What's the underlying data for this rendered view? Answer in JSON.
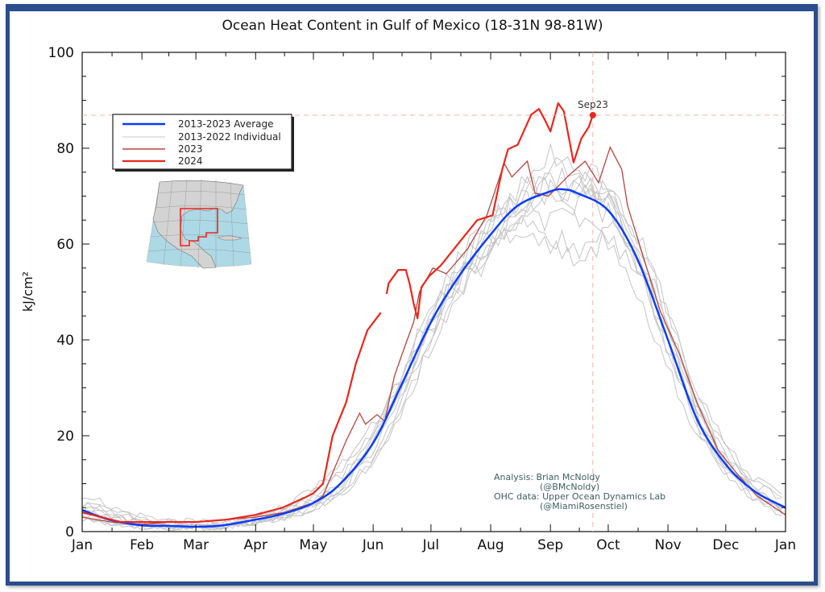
{
  "chart_data": {
    "type": "line",
    "title": "Ocean Heat Content in Gulf of Mexico (18-31N 98-81W)",
    "xlabel": "",
    "ylabel": "kJ/cm²",
    "ylim": [
      0,
      100
    ],
    "xlim_days": [
      0,
      365
    ],
    "yticks": [
      "0",
      "20",
      "40",
      "60",
      "80",
      "100"
    ],
    "ytick_values": [
      0,
      20,
      40,
      60,
      80,
      100
    ],
    "xticks": [
      "Jan",
      "Feb",
      "Mar",
      "Apr",
      "May",
      "Jun",
      "Jul",
      "Aug",
      "Sep",
      "Oct",
      "Nov",
      "Dec",
      "Jan"
    ],
    "xtick_days": [
      0,
      31,
      59,
      90,
      120,
      151,
      181,
      212,
      243,
      273,
      304,
      334,
      365
    ],
    "legend": {
      "placement": "upper-left",
      "entries": [
        {
          "label": "2013-2023 Average",
          "color": "#0a3cff"
        },
        {
          "label": "2013-2022 Individual",
          "color": "#c8c8c8"
        },
        {
          "label": "2023",
          "color": "#b5463e"
        },
        {
          "label": "2024",
          "color": "#e8271e"
        }
      ]
    },
    "individual_days": [
      0,
      15,
      31,
      45,
      59,
      74,
      90,
      105,
      120,
      135,
      151,
      166,
      181,
      196,
      212,
      227,
      243,
      258,
      273,
      288,
      304,
      319,
      334,
      349,
      365
    ],
    "individual_series": [
      [
        6,
        4,
        3,
        2,
        2,
        2,
        3,
        5,
        9,
        14,
        22,
        33,
        46,
        55,
        63,
        70,
        74,
        72,
        66,
        55,
        38,
        22,
        12,
        7,
        4
      ],
      [
        3,
        2,
        1,
        1,
        1,
        1,
        2,
        3,
        5,
        8,
        15,
        26,
        40,
        50,
        60,
        66,
        65,
        68,
        70,
        60,
        42,
        25,
        15,
        9,
        5
      ],
      [
        8,
        5,
        3,
        2,
        1,
        2,
        3,
        4,
        7,
        12,
        20,
        32,
        45,
        56,
        65,
        72,
        78,
        76,
        72,
        62,
        45,
        28,
        17,
        10,
        6
      ],
      [
        4,
        2,
        1,
        1,
        1,
        1,
        2,
        3,
        5,
        9,
        16,
        27,
        41,
        52,
        60,
        64,
        60,
        55,
        62,
        55,
        38,
        22,
        13,
        8,
        4
      ],
      [
        5,
        3,
        2,
        1,
        1,
        1,
        2,
        4,
        6,
        11,
        19,
        31,
        44,
        54,
        62,
        68,
        72,
        74,
        68,
        58,
        40,
        24,
        14,
        9,
        5
      ],
      [
        3,
        2,
        1,
        1,
        1,
        1,
        2,
        3,
        6,
        10,
        18,
        30,
        44,
        55,
        64,
        70,
        76,
        74,
        70,
        60,
        44,
        26,
        16,
        10,
        6
      ],
      [
        5,
        3,
        2,
        1,
        1,
        2,
        3,
        5,
        8,
        13,
        21,
        33,
        47,
        57,
        64,
        69,
        70,
        66,
        60,
        50,
        34,
        20,
        12,
        7,
        3
      ],
      [
        4,
        3,
        2,
        1,
        1,
        1,
        2,
        3,
        5,
        8,
        14,
        25,
        39,
        50,
        58,
        66,
        69,
        70,
        68,
        58,
        42,
        26,
        15,
        8,
        4
      ],
      [
        6,
        4,
        2,
        2,
        1,
        1,
        2,
        4,
        7,
        11,
        19,
        30,
        42,
        52,
        61,
        67,
        71,
        72,
        70,
        62,
        46,
        30,
        18,
        11,
        7
      ],
      [
        3,
        2,
        1,
        1,
        1,
        1,
        2,
        3,
        5,
        9,
        17,
        29,
        43,
        53,
        60,
        65,
        62,
        58,
        64,
        56,
        40,
        24,
        14,
        8,
        4
      ]
    ],
    "average": [
      [
        0,
        4.5
      ],
      [
        14,
        2.5
      ],
      [
        31,
        1.3
      ],
      [
        45,
        1.2
      ],
      [
        59,
        1
      ],
      [
        73,
        1.3
      ],
      [
        90,
        2.5
      ],
      [
        104,
        3.7
      ],
      [
        120,
        6
      ],
      [
        134,
        10
      ],
      [
        151,
        18.5
      ],
      [
        165,
        30
      ],
      [
        181,
        43.7
      ],
      [
        195,
        53
      ],
      [
        212,
        62
      ],
      [
        226,
        68
      ],
      [
        243,
        71
      ],
      [
        250,
        71.4
      ],
      [
        257,
        70.6
      ],
      [
        273,
        67
      ],
      [
        288,
        57
      ],
      [
        304,
        40
      ],
      [
        319,
        23.5
      ],
      [
        334,
        14
      ],
      [
        349,
        8.4
      ],
      [
        365,
        5
      ]
    ],
    "series_2023": [
      [
        0,
        3
      ],
      [
        15,
        2
      ],
      [
        31,
        1.5
      ],
      [
        45,
        2
      ],
      [
        59,
        2
      ],
      [
        75,
        2.5
      ],
      [
        90,
        3
      ],
      [
        105,
        4
      ],
      [
        120,
        6
      ],
      [
        125,
        7.5
      ],
      [
        137,
        19
      ],
      [
        144,
        24.7
      ],
      [
        147,
        22.4
      ],
      [
        153,
        24.4
      ],
      [
        157,
        23
      ],
      [
        162,
        32.4
      ],
      [
        166,
        37
      ],
      [
        172,
        43.7
      ],
      [
        175,
        50
      ],
      [
        182,
        55
      ],
      [
        189,
        53.8
      ],
      [
        200,
        59
      ],
      [
        210,
        66
      ],
      [
        215,
        72
      ],
      [
        219,
        76.8
      ],
      [
        223,
        74
      ],
      [
        231,
        77.3
      ],
      [
        235,
        70.6
      ],
      [
        242,
        70
      ],
      [
        253,
        74.5
      ],
      [
        261,
        77.3
      ],
      [
        268,
        72.8
      ],
      [
        274,
        80.2
      ],
      [
        280,
        75.6
      ],
      [
        283,
        68
      ],
      [
        293,
        55
      ],
      [
        300,
        46
      ],
      [
        310,
        37
      ],
      [
        319,
        27
      ],
      [
        330,
        17
      ],
      [
        340,
        12
      ],
      [
        350,
        7.5
      ],
      [
        365,
        3.5
      ]
    ],
    "series_2024_segments": [
      [
        [
          0,
          4
        ],
        [
          10,
          3
        ],
        [
          20,
          2
        ],
        [
          31,
          2
        ],
        [
          45,
          2
        ],
        [
          59,
          2
        ],
        [
          75,
          2.5
        ],
        [
          90,
          3.5
        ],
        [
          104,
          5
        ],
        [
          115,
          7
        ],
        [
          120,
          8
        ],
        [
          125,
          10
        ],
        [
          130,
          20
        ],
        [
          137,
          27
        ],
        [
          142,
          35
        ],
        [
          148,
          42
        ],
        [
          155,
          45.7
        ]
      ],
      [
        [
          158,
          49.6
        ],
        [
          159,
          51.8
        ],
        [
          164,
          54.6
        ],
        [
          168,
          54.6
        ],
        [
          170,
          51.6
        ],
        [
          172,
          47.6
        ],
        [
          174,
          44.5
        ],
        [
          176,
          51
        ],
        [
          180,
          53.3
        ],
        [
          186,
          55.5
        ],
        [
          195,
          60
        ],
        [
          205,
          65
        ],
        [
          213,
          66
        ],
        [
          218,
          75.6
        ],
        [
          221,
          79.8
        ],
        [
          226,
          80.7
        ],
        [
          233,
          87
        ],
        [
          237,
          88.2
        ],
        [
          240,
          86
        ],
        [
          243,
          83.5
        ],
        [
          247,
          89.4
        ],
        [
          250,
          87.7
        ],
        [
          255,
          77
        ],
        [
          259,
          82
        ],
        [
          263,
          84.5
        ],
        [
          265,
          86.9
        ]
      ]
    ],
    "latest_point": {
      "day": 265,
      "value": 86.9,
      "label": "Sep23"
    },
    "credits": [
      "Analysis: Brian McNoldy",
      "(@BMcNoldy)",
      "OHC data: Upper Ocean Dynamics Lab",
      "(@MiamiRosenstiel)"
    ]
  }
}
